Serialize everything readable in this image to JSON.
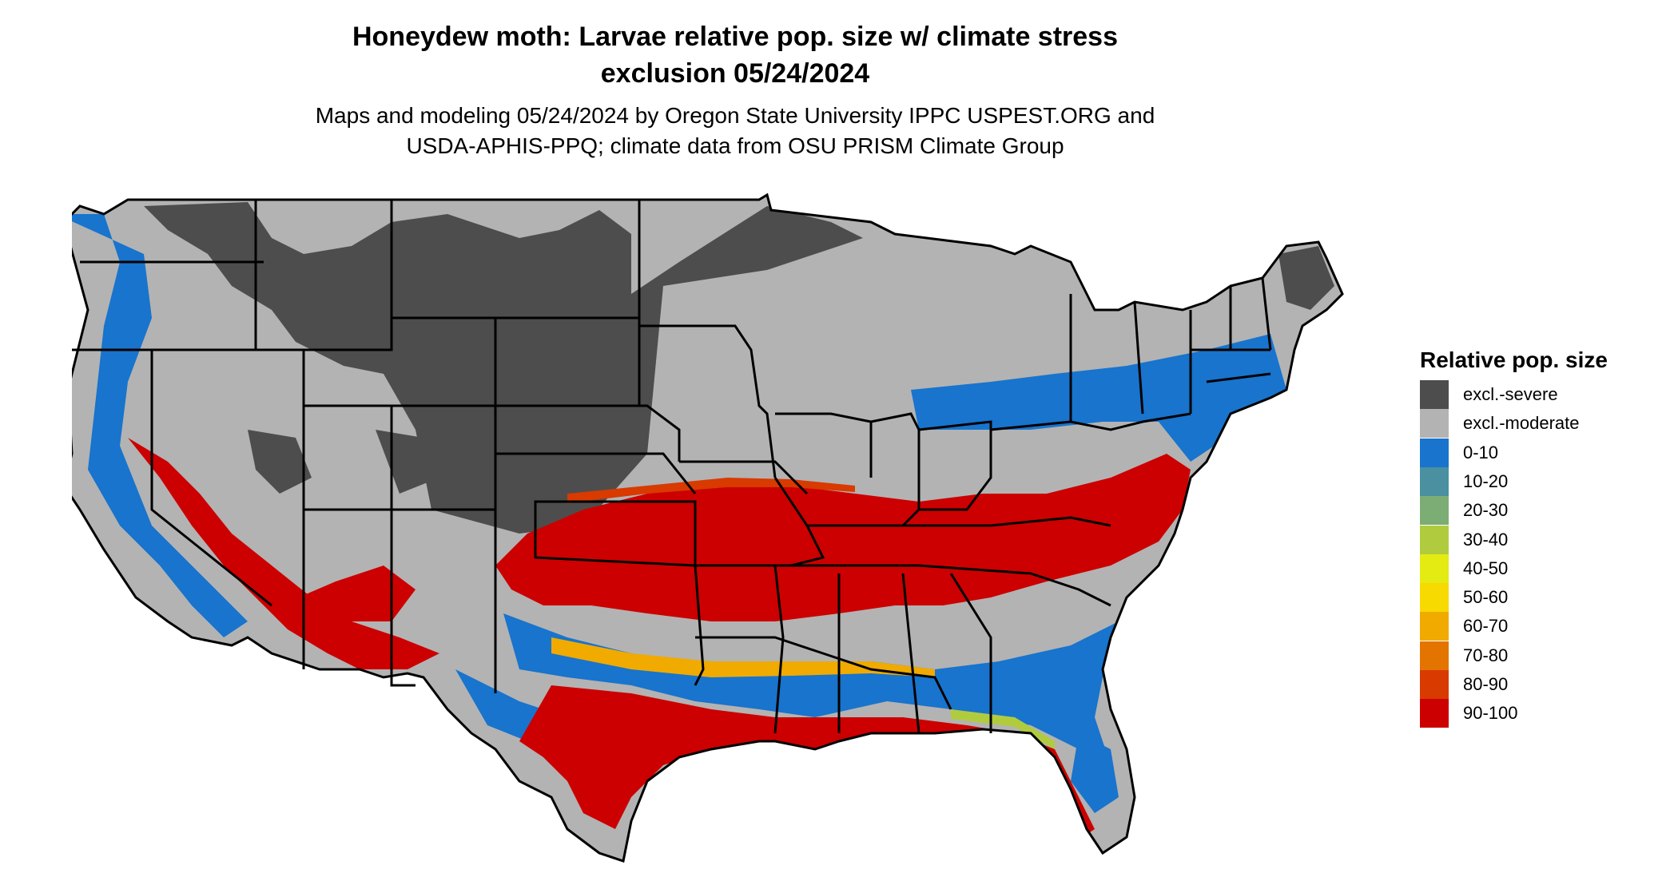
{
  "title_line1": "Honeydew moth: Larvae relative pop. size w/ climate stress",
  "title_line2": "exclusion 05/24/2024",
  "subtitle_line1": "Maps and modeling 05/24/2024 by Oregon State University IPPC USPEST.ORG and",
  "subtitle_line2": "USDA-APHIS-PPQ; climate data from OSU PRISM Climate Group",
  "legend": {
    "title": "Relative pop. size",
    "items": [
      {
        "label": "excl.-severe",
        "color": "#4d4d4d"
      },
      {
        "label": "excl.-moderate",
        "color": "#b3b3b3"
      },
      {
        "label": "0-10",
        "color": "#1874cd"
      },
      {
        "label": "10-20",
        "color": "#4a90a0"
      },
      {
        "label": "20-30",
        "color": "#7cad74"
      },
      {
        "label": "30-40",
        "color": "#b0cc3e"
      },
      {
        "label": "40-50",
        "color": "#e3eb12"
      },
      {
        "label": "50-60",
        "color": "#f7da00"
      },
      {
        "label": "60-70",
        "color": "#f0aa00"
      },
      {
        "label": "70-80",
        "color": "#e37400"
      },
      {
        "label": "80-90",
        "color": "#d83a00"
      },
      {
        "label": "90-100",
        "color": "#cc0000"
      }
    ]
  }
}
